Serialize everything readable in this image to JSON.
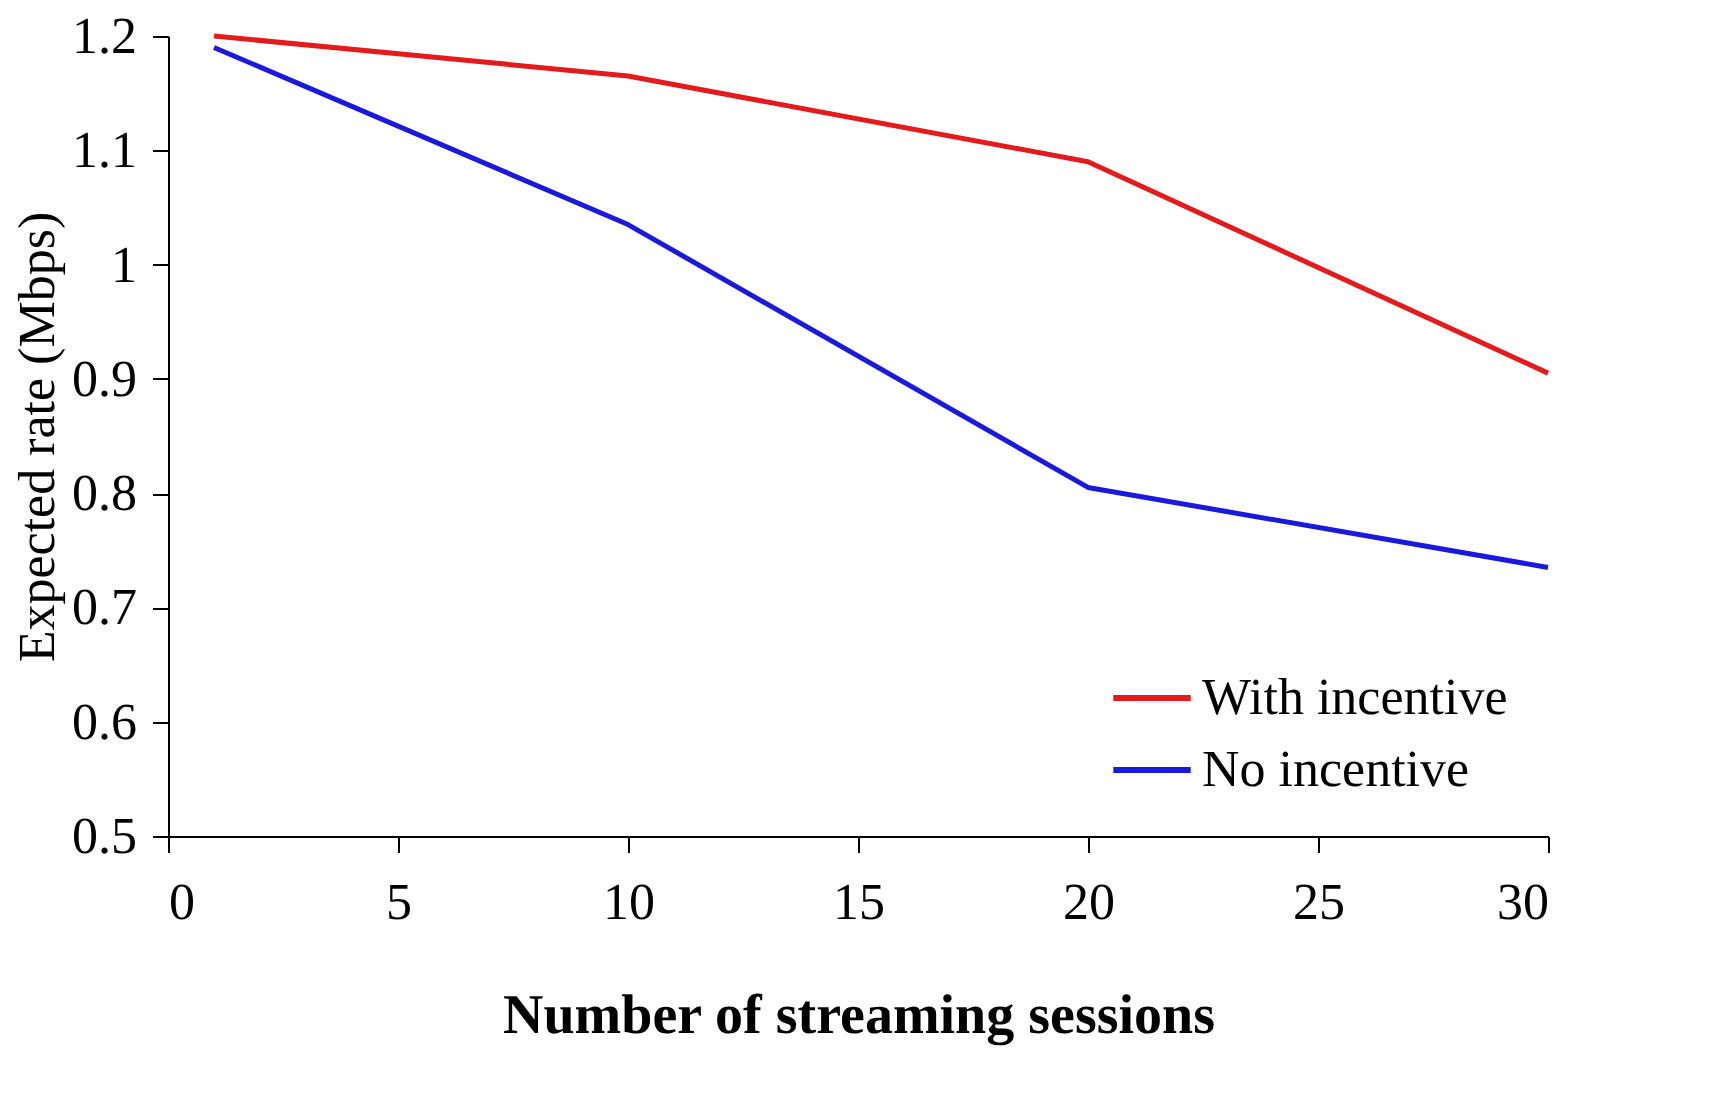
{
  "chart_data": {
    "type": "line",
    "xlabel": "Number of streaming sessions",
    "ylabel": "Expected rate (Mbps)",
    "x": [
      1,
      10,
      20,
      30
    ],
    "series": [
      {
        "name": "With incentive",
        "color": "#e41a1c",
        "values": [
          1.2,
          1.165,
          1.09,
          0.905
        ]
      },
      {
        "name": "No incentive",
        "color": "#1a1adc",
        "values": [
          1.19,
          1.035,
          0.805,
          0.735
        ]
      }
    ],
    "xlim": [
      0,
      30
    ],
    "xticks": [
      0,
      5,
      10,
      15,
      20,
      25,
      30
    ],
    "ylim": [
      0.5,
      1.2
    ],
    "yticks": [
      0.5,
      0.6,
      0.7,
      0.8,
      0.9,
      1,
      1.1,
      1.2
    ],
    "legend": "bottom right",
    "grid": false,
    "marker": "none",
    "line_style": "solid"
  }
}
